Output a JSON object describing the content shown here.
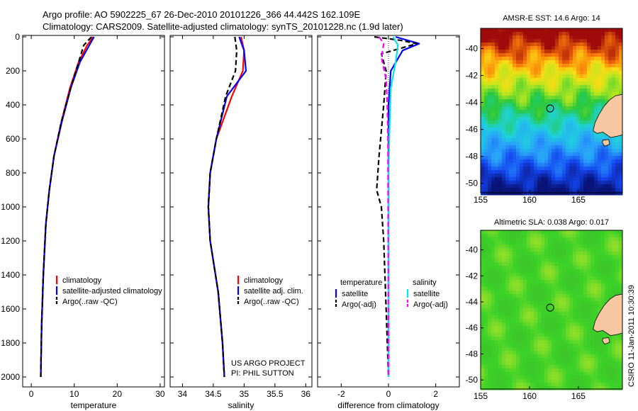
{
  "header": {
    "line1": "Argo profile: AO 5902225_67 26-Dec-2010 20101226_366 44.442S 162.109E",
    "line2": "Climatology: CARS2009. Satellite-adjusted climatology: synTS_20101228.nc (1.9d later)"
  },
  "side_label": "CSIRO 11-Jan-2011 10:30:39",
  "project_label": [
    "US ARGO PROJECT",
    "PI: PHIL SUTTON"
  ],
  "colors": {
    "clim": "#ff0000",
    "sat": "#0000ff",
    "argo": "#000000",
    "sal_sat": "#00e5ee",
    "sal_argo": "#ff00ff"
  },
  "chart_data": [
    {
      "type": "line",
      "xlabel": "temperature",
      "xlim": [
        -2,
        31
      ],
      "xticks": [
        0,
        10,
        20,
        30
      ],
      "ylim": [
        2000,
        0
      ],
      "yticks": [
        0,
        200,
        400,
        600,
        800,
        1000,
        1200,
        1400,
        1600,
        1800,
        2000
      ],
      "legend": {
        "placement": "lower-right",
        "entries": [
          "climatology",
          "satellite-adjusted climatology",
          "Argo(..raw -QC)"
        ]
      },
      "series": [
        {
          "name": "climatology",
          "color": "#ff0000",
          "style": "solid",
          "x": [
            14.4,
            13.0,
            11.0,
            9.0,
            7.0,
            5.3,
            4.2,
            3.4,
            2.8,
            2.4,
            2.2
          ],
          "y": [
            0,
            50,
            150,
            300,
            500,
            700,
            900,
            1100,
            1400,
            1700,
            2000
          ]
        },
        {
          "name": "satellite-adjusted climatology",
          "color": "#0000ff",
          "style": "solid",
          "x": [
            14.6,
            13.5,
            11.3,
            9.2,
            7.1,
            5.3,
            4.2,
            3.4,
            2.8,
            2.4,
            2.2
          ],
          "y": [
            0,
            50,
            150,
            300,
            500,
            700,
            900,
            1100,
            1400,
            1700,
            2000
          ]
        },
        {
          "name": "Argo(..raw -QC)",
          "color": "#000000",
          "style": "dashed",
          "x": [
            14.0,
            12.2,
            11.0,
            9.2,
            7.0,
            5.3,
            4.2,
            3.4,
            2.8,
            2.4,
            2.2
          ],
          "y": [
            0,
            50,
            150,
            300,
            500,
            700,
            900,
            1100,
            1400,
            1700,
            2000
          ]
        }
      ]
    },
    {
      "type": "line",
      "xlabel": "salinity",
      "xlim": [
        33.8,
        36.1
      ],
      "xticks": [
        34,
        34.5,
        35,
        35.5,
        36
      ],
      "ylim": [
        2000,
        0
      ],
      "legend": {
        "placement": "lower-right",
        "entries": [
          "climatology",
          "satellite adj. clim.",
          "Argo(..raw -QC)"
        ]
      },
      "series": [
        {
          "name": "climatology",
          "color": "#ff0000",
          "style": "solid",
          "x": [
            34.95,
            35.0,
            34.98,
            34.8,
            34.55,
            34.45,
            34.42,
            34.45,
            34.58,
            34.65,
            34.68
          ],
          "y": [
            0,
            80,
            200,
            350,
            600,
            800,
            1000,
            1200,
            1500,
            1800,
            2000
          ]
        },
        {
          "name": "satellite adj. clim.",
          "color": "#0000ff",
          "style": "solid",
          "x": [
            34.92,
            35.0,
            35.03,
            34.72,
            34.55,
            34.45,
            34.42,
            34.45,
            34.58,
            34.65,
            34.68
          ],
          "y": [
            0,
            80,
            200,
            350,
            600,
            800,
            1000,
            1200,
            1500,
            1800,
            2000
          ]
        },
        {
          "name": "Argo(..raw -QC)",
          "color": "#000000",
          "style": "dashed",
          "x": [
            34.85,
            34.88,
            34.86,
            34.7,
            34.55,
            34.45,
            34.42,
            34.45,
            34.58,
            34.65,
            34.68
          ],
          "y": [
            0,
            80,
            200,
            350,
            600,
            800,
            1000,
            1200,
            1500,
            1800,
            2000
          ]
        }
      ]
    },
    {
      "type": "line",
      "xlabel": "difference from climatology",
      "xlim": [
        -3,
        3
      ],
      "xticks": [
        -2,
        0,
        2
      ],
      "ylim": [
        2000,
        0
      ],
      "legend": {
        "placement": "lower-right",
        "groups": [
          "temperature",
          "salinity"
        ],
        "entries": [
          "satellite",
          "Argo(-adj)",
          "satellite",
          "Argo(-adj)"
        ]
      },
      "series": [
        {
          "name": "temperature satellite",
          "color": "#0000ff",
          "style": "solid",
          "x": [
            0.3,
            0.8,
            1.3,
            0.6,
            0.1,
            0,
            0,
            0,
            0,
            0
          ],
          "y": [
            0,
            20,
            40,
            80,
            200,
            400,
            800,
            1200,
            1600,
            2000
          ]
        },
        {
          "name": "temperature Argo(-adj)",
          "color": "#000000",
          "style": "dashed",
          "x": [
            -0.6,
            0.5,
            1.2,
            -0.3,
            -0.1,
            -0.2,
            -0.4,
            -0.5,
            -0.3,
            -0.2,
            -0.1,
            0
          ],
          "y": [
            0,
            20,
            40,
            100,
            200,
            400,
            700,
            900,
            1000,
            1200,
            1600,
            2000
          ]
        },
        {
          "name": "salinity satellite",
          "color": "#00e5ee",
          "style": "solid",
          "x": [
            0.2,
            0.4,
            0.3,
            0.1,
            0.05,
            0,
            0,
            0,
            0
          ],
          "y": [
            0,
            50,
            150,
            300,
            500,
            800,
            1200,
            1600,
            2000
          ]
        },
        {
          "name": "salinity Argo(-adj)",
          "color": "#ff00ff",
          "style": "dashed",
          "x": [
            -0.4,
            -0.2,
            -0.3,
            -0.1,
            -0.05,
            -0.02,
            0
          ],
          "y": [
            0,
            40,
            120,
            250,
            400,
            600,
            2000
          ]
        }
      ]
    },
    {
      "type": "heatmap",
      "title": "AMSR-E SST: 14.6 Argo: 14",
      "xlim": [
        155,
        169.5
      ],
      "xticks": [
        155,
        160,
        165
      ],
      "ylim": [
        -50.7,
        -38.5
      ],
      "yticks": [
        -40,
        -42,
        -44,
        -46,
        -48,
        -50
      ],
      "marker": {
        "x": 162.109,
        "y": -44.442
      }
    },
    {
      "type": "heatmap",
      "title": "Altimetric SLA: 0.038 Argo: 0.017",
      "xlim": [
        155,
        169.5
      ],
      "xticks": [
        155,
        160,
        165
      ],
      "ylim": [
        -50.7,
        -38.5
      ],
      "yticks": [
        -40,
        -42,
        -44,
        -46,
        -48,
        -50
      ],
      "marker": {
        "x": 162.109,
        "y": -44.442
      }
    }
  ]
}
